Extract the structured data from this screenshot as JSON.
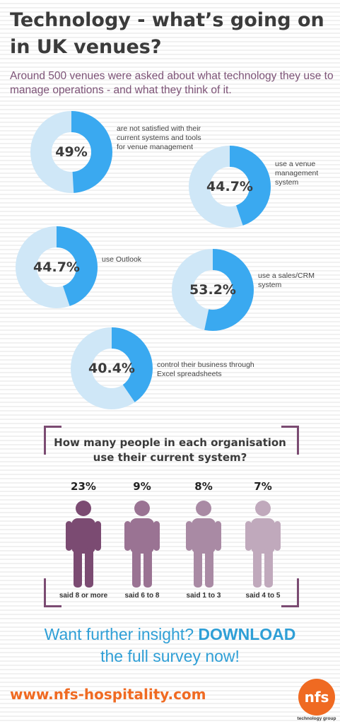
{
  "header": {
    "title": "Technology - what’s going on in UK venues?",
    "subtitle": "Around 500 venues were asked about what technology they use to manage operations - and what they think of it."
  },
  "stats": [
    {
      "value": 49,
      "percent": "49%",
      "text": "are not satisfied with their current systems and tools for venue management"
    },
    {
      "value": 44.7,
      "percent": "44.7%",
      "text": "use a venue management system"
    },
    {
      "value": 44.7,
      "percent": "44.7%",
      "text": "use Outlook"
    },
    {
      "value": 53.2,
      "percent": "53.2%",
      "text": "use a sales/CRM system"
    },
    {
      "value": 40.4,
      "percent": "40.4%",
      "text": "control their business through Excel spreadsheets"
    }
  ],
  "people_section": {
    "question": "How many people in each organisation use their current system?",
    "items": [
      {
        "value": 23,
        "percent": "23%",
        "label": "said 8 or more",
        "color": "#7b4b72"
      },
      {
        "value": 9,
        "percent": "9%",
        "label": "said 6 to 8",
        "color": "#9a7393"
      },
      {
        "value": 8,
        "percent": "8%",
        "label": "said 1 to 3",
        "color": "#a98aa4"
      },
      {
        "value": 7,
        "percent": "7%",
        "label": "said 4 to 5",
        "color": "#c0a9bc"
      }
    ]
  },
  "cta": {
    "line1_prefix": "Want further insight? ",
    "download": "DOWNLOAD",
    "line2": "the full survey now!"
  },
  "footer": {
    "url": "www.nfs-hospitality.com",
    "logo_text": "nfs",
    "logo_sub": "technology group"
  },
  "colors": {
    "donut_fill": "#3aa9f0",
    "donut_track": "#cfe7f7",
    "title": "#3b3b3b",
    "subtitle": "#7d5377",
    "cta": "#2f9fd6",
    "url": "#ef6a22"
  }
}
